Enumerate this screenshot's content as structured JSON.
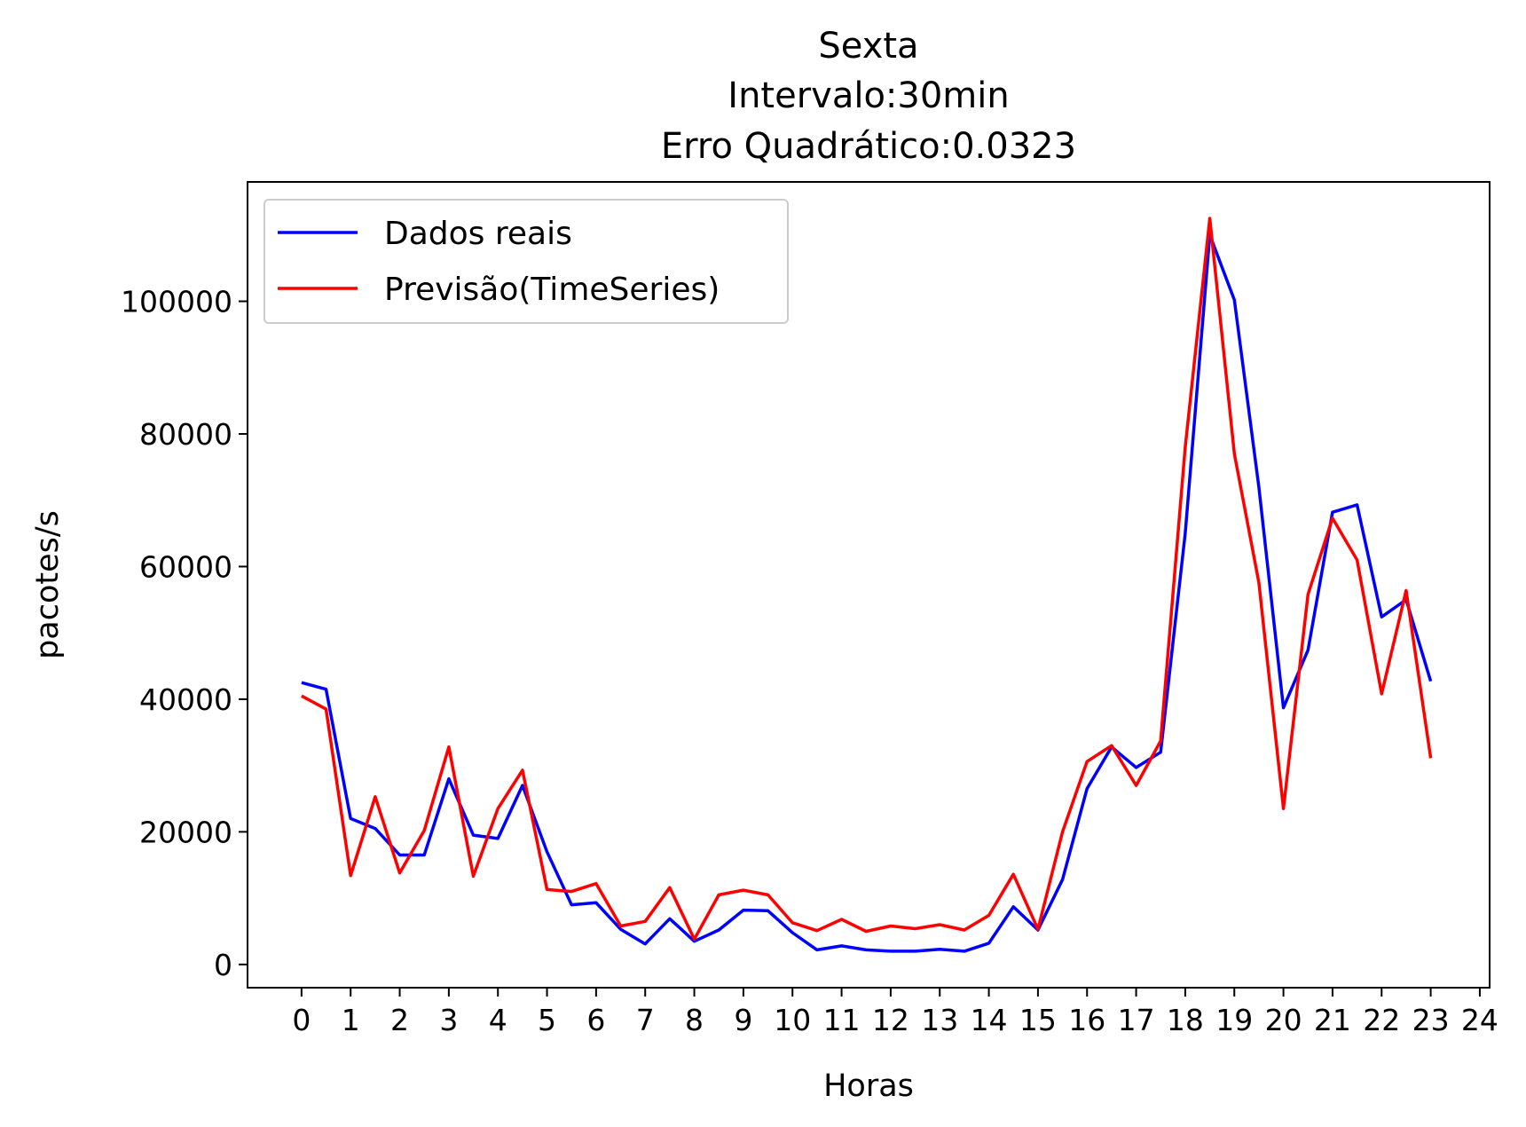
{
  "chart_data": {
    "type": "line",
    "title": [
      "Sexta",
      "Intervalo:30min",
      "Erro Quadrático:0.0323"
    ],
    "xlabel": "Horas",
    "ylabel": "pacotes/s",
    "xlim": [
      -1.1,
      24.2
    ],
    "ylim": [
      -3500,
      118000
    ],
    "x_ticks": [
      0,
      1,
      2,
      3,
      4,
      5,
      6,
      7,
      8,
      9,
      10,
      11,
      12,
      13,
      14,
      15,
      16,
      17,
      18,
      19,
      20,
      21,
      22,
      23,
      24
    ],
    "x_tick_labels": [
      "0",
      "1",
      "2",
      "3",
      "4",
      "5",
      "6",
      "7",
      "8",
      "9",
      "10",
      "11",
      "12",
      "13",
      "14",
      "15",
      "16",
      "17",
      "18",
      "19",
      "20",
      "21",
      "22",
      "23",
      "24"
    ],
    "y_ticks": [
      0,
      20000,
      40000,
      60000,
      80000,
      100000
    ],
    "y_tick_labels": [
      "0",
      "20000",
      "40000",
      "60000",
      "80000",
      "100000"
    ],
    "legend_position": "top-left",
    "grid": false,
    "x": [
      0,
      0.5,
      1,
      1.5,
      2,
      2.5,
      3,
      3.5,
      4,
      4.5,
      5,
      5.5,
      6,
      6.5,
      7,
      7.5,
      8,
      8.5,
      9,
      9.5,
      10,
      10.5,
      11,
      11.5,
      12,
      12.5,
      13,
      13.5,
      14,
      14.5,
      15,
      15.5,
      16,
      16.5,
      17,
      17.5,
      18,
      18.5,
      19,
      19.5,
      20,
      20.5,
      21,
      21.5,
      22,
      22.5,
      23
    ],
    "series": [
      {
        "name": "Dados reais",
        "color": "#0000ff",
        "values": [
          42500,
          41500,
          22000,
          20500,
          16500,
          16500,
          28000,
          19500,
          19000,
          27000,
          17000,
          9000,
          9300,
          5300,
          3100,
          6900,
          3500,
          5200,
          8200,
          8100,
          4800,
          2200,
          2800,
          2200,
          2000,
          2000,
          2300,
          2000,
          3200,
          8700,
          5200,
          12800,
          26500,
          32800,
          29700,
          32000,
          65000,
          110000,
          100200,
          72000,
          38700,
          47400,
          68200,
          69300,
          52400,
          55000,
          42700
        ]
      },
      {
        "name": "Previsão(TimeSeries)",
        "color": "#ff0000",
        "values": [
          40500,
          38500,
          13400,
          25300,
          13800,
          20200,
          32800,
          13300,
          23500,
          29300,
          11300,
          11000,
          12200,
          5800,
          6500,
          11600,
          3800,
          10500,
          11200,
          10500,
          6300,
          5100,
          6800,
          5000,
          5800,
          5400,
          6000,
          5200,
          7400,
          13600,
          5300,
          20000,
          30600,
          33000,
          27000,
          33700,
          78000,
          112500,
          77000,
          57600,
          23500,
          55800,
          67300,
          61000,
          40800,
          56400,
          31100
        ]
      }
    ]
  }
}
